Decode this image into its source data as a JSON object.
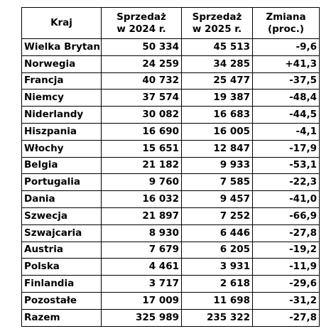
{
  "table": {
    "headers": {
      "country": "Kraj",
      "sales_2024": [
        "Sprzedaż",
        "w 2024 r."
      ],
      "sales_2025": [
        "Sprzedaż",
        "w 2025 r."
      ],
      "change": [
        "Zmiana",
        "(proc.)"
      ]
    },
    "rows": [
      {
        "country": "Wielka Brytania",
        "sales_2024": "50 334",
        "sales_2025": "45 513",
        "change": "-9,6"
      },
      {
        "country": "Norwegia",
        "sales_2024": "24 259",
        "sales_2025": "34 285",
        "change": "+41,3"
      },
      {
        "country": "Francja",
        "sales_2024": "40 732",
        "sales_2025": "25 477",
        "change": "-37,5"
      },
      {
        "country": "Niemcy",
        "sales_2024": "37 574",
        "sales_2025": "19 387",
        "change": "-48,4"
      },
      {
        "country": "Niderlandy",
        "sales_2024": "30 082",
        "sales_2025": "16 683",
        "change": "-44,5"
      },
      {
        "country": "Hiszpania",
        "sales_2024": "16 690",
        "sales_2025": "16 005",
        "change": "-4,1"
      },
      {
        "country": "Włochy",
        "sales_2024": "15 651",
        "sales_2025": "12 847",
        "change": "-17,9"
      },
      {
        "country": "Belgia",
        "sales_2024": "21 182",
        "sales_2025": "9 933",
        "change": "-53,1"
      },
      {
        "country": "Portugalia",
        "sales_2024": "9 760",
        "sales_2025": "7 585",
        "change": "-22,3"
      },
      {
        "country": "Dania",
        "sales_2024": "16 032",
        "sales_2025": "9 457",
        "change": "-41,0"
      },
      {
        "country": "Szwecja",
        "sales_2024": "21 897",
        "sales_2025": "7 252",
        "change": "-66,9"
      },
      {
        "country": "Szwajcaria",
        "sales_2024": "8 930",
        "sales_2025": "6 446",
        "change": "-27,8"
      },
      {
        "country": "Austria",
        "sales_2024": "7 679",
        "sales_2025": "6 205",
        "change": "-19,2"
      },
      {
        "country": "Polska",
        "sales_2024": "4 461",
        "sales_2025": "3 931",
        "change": "-11,9"
      },
      {
        "country": "Finlandia",
        "sales_2024": "3 717",
        "sales_2025": "2 618",
        "change": "-29,6"
      },
      {
        "country": "Pozostałe",
        "sales_2024": "17 009",
        "sales_2025": "11 698",
        "change": "-31,2"
      },
      {
        "country": "Razem",
        "sales_2024": "325 989",
        "sales_2025": "235 322",
        "change": "-27,8"
      }
    ]
  }
}
